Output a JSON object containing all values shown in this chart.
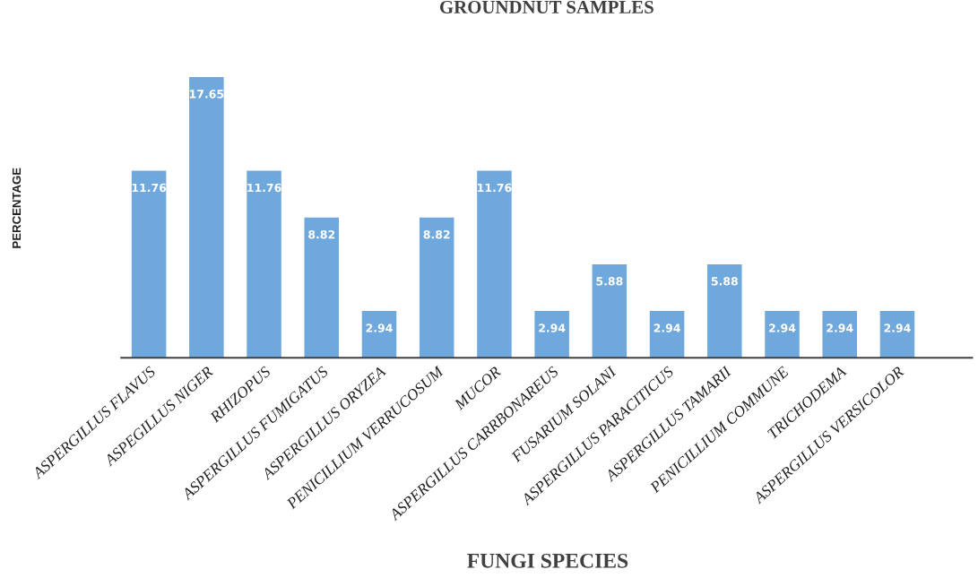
{
  "chart_data": {
    "type": "bar",
    "title": "GROUNDNUT SAMPLES",
    "xlabel": "FUNGI SPECIES",
    "ylabel": "PERCENTAGE",
    "categories": [
      "ASPERGILLUS FLAVUS",
      "ASPEGILLUS NIGER",
      "RHIZOPUS",
      "ASPERGILLUS FUMIGATUS",
      "ASPERGILLUS ORYZEA",
      "PENICILLIUM VERRUCOSUM",
      "MUCOR",
      "ASPERGILLUS CARRBONAREUS",
      "FUSARIUM SOLANI",
      "ASPERGILLUS PARACITICUS",
      "ASPERGILLUS TAMARII",
      "PENICILLIUM COMMUNE",
      "TRICHODEMA",
      "ASPERGILLUS VERSICOLOR"
    ],
    "values": [
      11.76,
      17.65,
      11.76,
      8.82,
      2.94,
      8.82,
      11.76,
      2.94,
      5.88,
      2.94,
      5.88,
      2.94,
      2.94,
      2.94
    ],
    "color": "#6fa8dc",
    "data_labels": true
  }
}
